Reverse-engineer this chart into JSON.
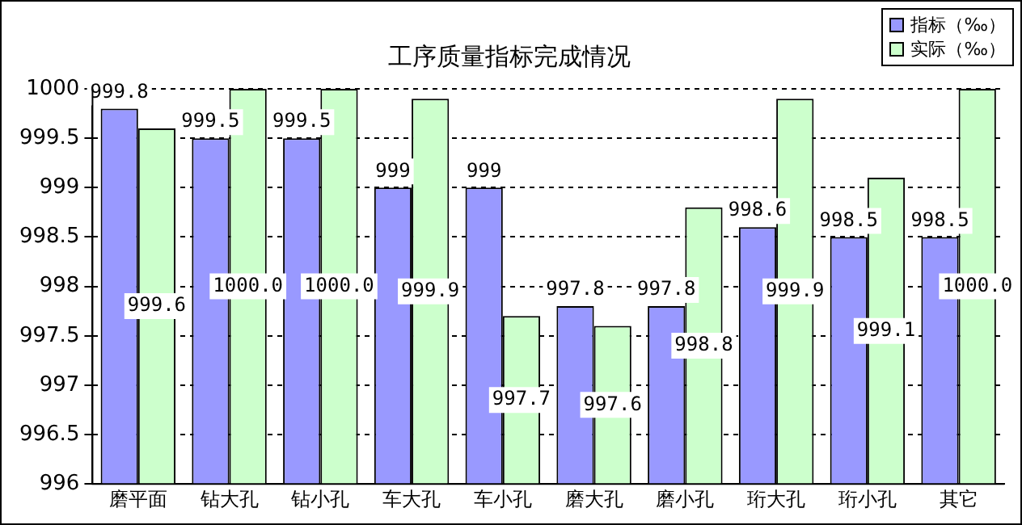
{
  "chart_data": {
    "type": "bar",
    "title": "工序质量指标完成情况",
    "categories": [
      "磨平面",
      "钻大孔",
      "钻小孔",
      "车大孔",
      "车小孔",
      "磨大孔",
      "磨小孔",
      "珩大孔",
      "珩小孔",
      "其它"
    ],
    "series": [
      {
        "name": "指标（‰）",
        "color": "#9999ff",
        "values": [
          999.8,
          999.5,
          999.5,
          999,
          999,
          997.8,
          997.8,
          998.6,
          998.5,
          998.5
        ],
        "value_labels": [
          "999.8",
          "999.5",
          "999.5",
          "999",
          "999",
          "997.8",
          "997.8",
          "998.6",
          "998.5",
          "998.5"
        ]
      },
      {
        "name": "实际（‰）",
        "color": "#ccffcc",
        "values": [
          999.6,
          1000.0,
          1000.0,
          999.9,
          997.7,
          997.6,
          998.8,
          999.9,
          999.1,
          1000.0
        ],
        "value_labels": [
          "999.6",
          "1000.0",
          "1000.0",
          "999.9",
          "997.7",
          "997.6",
          "998.8",
          "999.9",
          "999.1",
          "1000.0"
        ]
      }
    ],
    "ylim": [
      996,
      1000
    ],
    "yticks": [
      996,
      996.5,
      997,
      997.5,
      998,
      998.5,
      999,
      999.5,
      1000
    ],
    "grid": "y",
    "legend": "top right"
  }
}
